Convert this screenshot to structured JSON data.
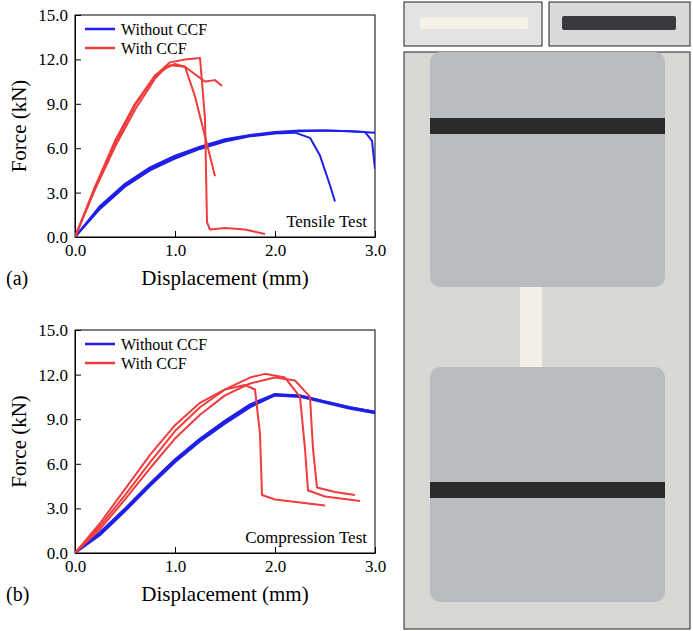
{
  "chart_data": [
    {
      "type": "line",
      "panel_label": "(a)",
      "x_label": "Displacement (mm)",
      "y_label": "Force (kN)",
      "annotations": [
        "Tensile Test"
      ],
      "legend": "top-left",
      "grid": false,
      "xlim": [
        0,
        3
      ],
      "ylim": [
        0,
        15
      ],
      "xticks": [
        {
          "value": 0,
          "label": "0.0"
        },
        {
          "value": 1,
          "label": "1.0"
        },
        {
          "value": 2,
          "label": "2.0"
        },
        {
          "value": 3,
          "label": "3.0"
        }
      ],
      "yticks": [
        {
          "value": 0,
          "label": "0.0"
        },
        {
          "value": 3,
          "label": "3.0"
        },
        {
          "value": 6,
          "label": "6.0"
        },
        {
          "value": 9,
          "label": "9.0"
        },
        {
          "value": 12,
          "label": "12.0"
        },
        {
          "value": 15,
          "label": "15.0"
        }
      ],
      "series": [
        {
          "name": "Without CCF",
          "color": "#1f1fe8",
          "x": [
            0,
            0.25,
            0.5,
            0.75,
            1.0,
            1.25,
            1.5,
            1.75,
            2.0,
            2.25,
            2.5,
            2.75,
            3.0
          ],
          "values": [
            0,
            2.0,
            3.5,
            4.6,
            5.4,
            6.0,
            6.5,
            6.85,
            7.05,
            7.15,
            7.2,
            7.15,
            7.05
          ]
        },
        {
          "name": "Without CCF",
          "color": "#1f1fe8",
          "x": [
            0,
            0.25,
            0.5,
            0.75,
            1.0,
            1.25,
            1.5,
            1.75,
            2.0,
            2.2,
            2.35,
            2.45,
            2.55,
            2.6
          ],
          "values": [
            0,
            1.9,
            3.4,
            4.5,
            5.3,
            5.95,
            6.45,
            6.8,
            7.0,
            7.05,
            6.7,
            5.5,
            3.5,
            2.4
          ]
        },
        {
          "name": "Without CCF",
          "color": "#1f1fe8",
          "x": [
            0,
            0.25,
            0.5,
            0.75,
            1.0,
            1.25,
            1.5,
            1.75,
            2.0,
            2.25,
            2.5,
            2.75,
            2.9,
            2.97,
            3.0
          ],
          "values": [
            0,
            2.1,
            3.6,
            4.7,
            5.5,
            6.1,
            6.6,
            6.9,
            7.1,
            7.2,
            7.2,
            7.15,
            7.1,
            6.5,
            4.6
          ]
        },
        {
          "name": "With CCF",
          "color": "#f03c3c",
          "x": [
            0,
            0.2,
            0.4,
            0.6,
            0.8,
            0.95,
            1.1,
            1.25,
            1.3,
            1.32,
            1.35,
            1.5,
            1.7,
            1.9
          ],
          "values": [
            0,
            3.3,
            6.3,
            8.9,
            10.9,
            11.8,
            12.0,
            12.1,
            8,
            1.0,
            0.5,
            0.6,
            0.5,
            0.2
          ]
        },
        {
          "name": "With CCF",
          "color": "#f03c3c",
          "x": [
            0,
            0.2,
            0.4,
            0.6,
            0.8,
            0.95,
            1.1,
            1.2,
            1.3,
            1.4,
            1.47
          ],
          "values": [
            0,
            3.4,
            6.5,
            9.0,
            10.9,
            11.6,
            11.5,
            11.0,
            10.5,
            10.6,
            10.2
          ]
        },
        {
          "name": "With CCF",
          "color": "#f03c3c",
          "x": [
            0,
            0.2,
            0.4,
            0.6,
            0.8,
            0.9,
            1.0,
            1.1,
            1.2,
            1.3,
            1.4
          ],
          "values": [
            0,
            3.2,
            6.1,
            8.6,
            10.7,
            11.4,
            11.7,
            11.5,
            9.5,
            6.8,
            4.1
          ]
        }
      ]
    },
    {
      "type": "line",
      "panel_label": "(b)",
      "x_label": "Displacement (mm)",
      "y_label": "Force (kN)",
      "annotations": [
        "Compression Test"
      ],
      "legend": "top-left",
      "grid": false,
      "xlim": [
        0,
        3
      ],
      "ylim": [
        0,
        15
      ],
      "xticks": [
        {
          "value": 0,
          "label": "0.0"
        },
        {
          "value": 1,
          "label": "1.0"
        },
        {
          "value": 2,
          "label": "2.0"
        },
        {
          "value": 3,
          "label": "3.0"
        }
      ],
      "yticks": [
        {
          "value": 0,
          "label": "0.0"
        },
        {
          "value": 3,
          "label": "3.0"
        },
        {
          "value": 6,
          "label": "6.0"
        },
        {
          "value": 9,
          "label": "9.0"
        },
        {
          "value": 12,
          "label": "12.0"
        },
        {
          "value": 15,
          "label": "15.0"
        }
      ],
      "series": [
        {
          "name": "Without CCF",
          "color": "#1f1fe8",
          "x": [
            0,
            0.25,
            0.5,
            0.75,
            1.0,
            1.25,
            1.5,
            1.75,
            2.0,
            2.25,
            2.5,
            2.75,
            3.0
          ],
          "values": [
            0,
            1.3,
            2.9,
            4.6,
            6.2,
            7.6,
            8.8,
            9.9,
            10.6,
            10.5,
            10.1,
            9.7,
            9.4
          ]
        },
        {
          "name": "Without CCF",
          "color": "#1f1fe8",
          "x": [
            0,
            0.25,
            0.5,
            0.75,
            1.0,
            1.25,
            1.5,
            1.75,
            2.0,
            2.25,
            2.5,
            2.75,
            3.0
          ],
          "values": [
            0,
            1.2,
            2.8,
            4.5,
            6.1,
            7.5,
            8.7,
            9.8,
            10.6,
            10.6,
            10.2,
            9.8,
            9.5
          ]
        },
        {
          "name": "Without CCF",
          "color": "#1f1fe8",
          "x": [
            0,
            0.25,
            0.5,
            0.75,
            1.0,
            1.25,
            1.5,
            1.75,
            2.0,
            2.25,
            2.5,
            2.75,
            3.0
          ],
          "values": [
            0,
            1.4,
            3.0,
            4.7,
            6.3,
            7.7,
            8.9,
            10.0,
            10.7,
            10.6,
            10.2,
            9.8,
            9.5
          ]
        },
        {
          "name": "With CCF",
          "color": "#f03c3c",
          "x": [
            0,
            0.25,
            0.5,
            0.75,
            1.0,
            1.25,
            1.5,
            1.7,
            1.8,
            1.85,
            1.87,
            2.0,
            2.5
          ],
          "values": [
            0,
            2.0,
            4.3,
            6.6,
            8.6,
            10.1,
            11.0,
            11.3,
            11.0,
            8,
            3.9,
            3.6,
            3.2
          ]
        },
        {
          "name": "With CCF",
          "color": "#f03c3c",
          "x": [
            0,
            0.25,
            0.5,
            0.75,
            1.0,
            1.25,
            1.5,
            1.75,
            1.9,
            2.1,
            2.25,
            2.3,
            2.33,
            2.5,
            2.85
          ],
          "values": [
            0,
            1.8,
            3.9,
            6.1,
            8.2,
            9.8,
            11.0,
            11.8,
            12.05,
            11.8,
            10.5,
            7,
            4.2,
            3.8,
            3.5
          ]
        },
        {
          "name": "With CCF",
          "color": "#f03c3c",
          "x": [
            0,
            0.25,
            0.5,
            0.75,
            1.0,
            1.25,
            1.5,
            1.75,
            2.0,
            2.2,
            2.35,
            2.38,
            2.42,
            2.6,
            2.8
          ],
          "values": [
            0,
            1.6,
            3.6,
            5.7,
            7.7,
            9.3,
            10.6,
            11.4,
            11.8,
            11.6,
            10.5,
            7,
            4.4,
            4.1,
            3.9
          ]
        }
      ]
    }
  ]
}
